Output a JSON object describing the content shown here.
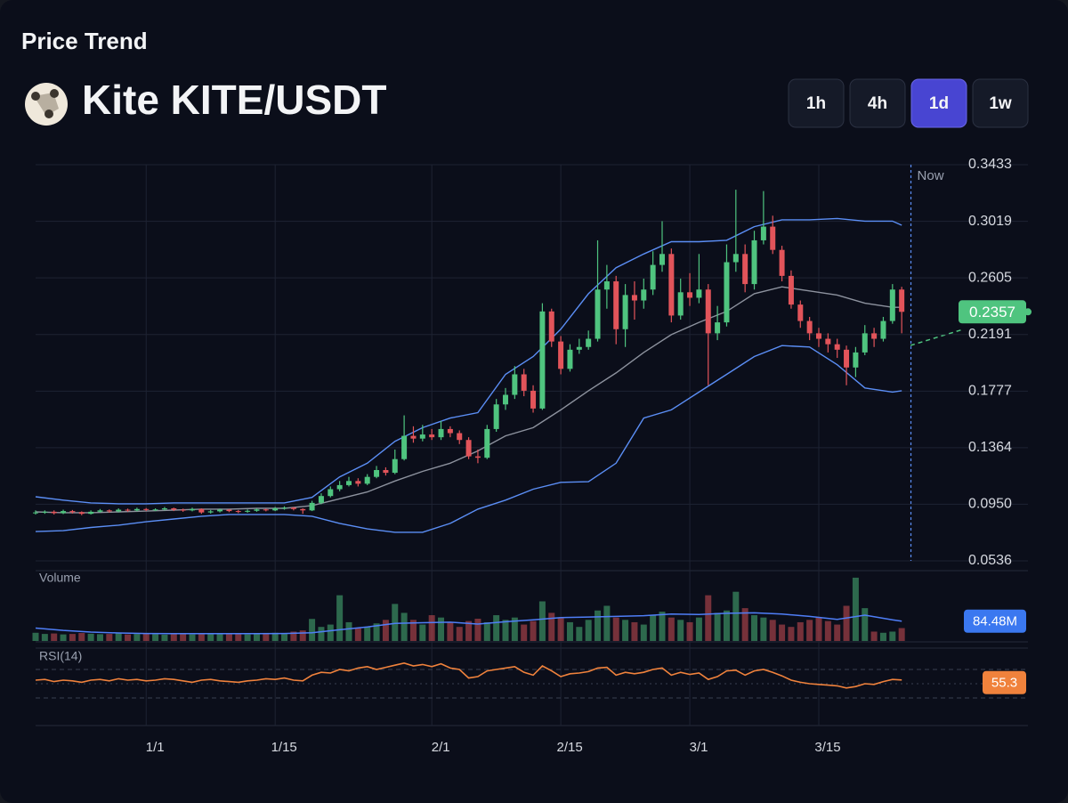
{
  "header": {
    "title": "Price Trend",
    "pair": "Kite KITE/USDT"
  },
  "timeframes": [
    "1h",
    "4h",
    "1d",
    "1w"
  ],
  "active_timeframe": "1d",
  "chart_data": {
    "type": "candlestick",
    "x": [
      -12,
      -11,
      -10,
      -9,
      -8,
      -7,
      -6,
      -5,
      -4,
      -3,
      -2,
      -1,
      0,
      1,
      2,
      3,
      4,
      5,
      6,
      7,
      8,
      9,
      10,
      11,
      12,
      13,
      14,
      15,
      16,
      17,
      18,
      19,
      20,
      21,
      22,
      23,
      24,
      25,
      26,
      27,
      28,
      29,
      30,
      31,
      32,
      33,
      34,
      35,
      36,
      37,
      38,
      39,
      40,
      41,
      42,
      43,
      44,
      45,
      46,
      47,
      48,
      49,
      50,
      51,
      52,
      53,
      54,
      55,
      56,
      57,
      58,
      59,
      60,
      61,
      62,
      63,
      64,
      65,
      66,
      67,
      68,
      69,
      70,
      71,
      72,
      73,
      74,
      75,
      76,
      77,
      78,
      79,
      80,
      81,
      82
    ],
    "open": [
      0.0885,
      0.089,
      0.0895,
      0.0885,
      0.09,
      0.0892,
      0.088,
      0.0895,
      0.0905,
      0.0898,
      0.091,
      0.0905,
      0.0915,
      0.0908,
      0.0912,
      0.092,
      0.091,
      0.0905,
      0.0915,
      0.089,
      0.0898,
      0.091,
      0.09,
      0.0895,
      0.0902,
      0.0912,
      0.0905,
      0.092,
      0.0925,
      0.0915,
      0.0905,
      0.096,
      0.101,
      0.106,
      0.109,
      0.112,
      0.11,
      0.115,
      0.12,
      0.118,
      0.128,
      0.145,
      0.143,
      0.146,
      0.144,
      0.15,
      0.147,
      0.142,
      0.13,
      0.129,
      0.15,
      0.168,
      0.175,
      0.19,
      0.178,
      0.165,
      0.236,
      0.214,
      0.194,
      0.208,
      0.21,
      0.216,
      0.252,
      0.258,
      0.223,
      0.248,
      0.244,
      0.252,
      0.27,
      0.278,
      0.233,
      0.25,
      0.246,
      0.252,
      0.22,
      0.228,
      0.272,
      0.278,
      0.256,
      0.288,
      0.298,
      0.281,
      0.262,
      0.241,
      0.229,
      0.22,
      0.216,
      0.212,
      0.208,
      0.195,
      0.206,
      0.22,
      0.216,
      0.229,
      0.252
    ],
    "high": [
      0.0905,
      0.0905,
      0.0905,
      0.091,
      0.0908,
      0.0898,
      0.0905,
      0.0915,
      0.0912,
      0.092,
      0.0918,
      0.0925,
      0.0922,
      0.092,
      0.093,
      0.0925,
      0.0918,
      0.0925,
      0.092,
      0.0908,
      0.0918,
      0.0915,
      0.0908,
      0.0912,
      0.092,
      0.0918,
      0.093,
      0.0935,
      0.093,
      0.092,
      0.0975,
      0.103,
      0.108,
      0.112,
      0.115,
      0.114,
      0.117,
      0.123,
      0.122,
      0.135,
      0.16,
      0.152,
      0.153,
      0.15,
      0.156,
      0.152,
      0.149,
      0.144,
      0.135,
      0.153,
      0.172,
      0.18,
      0.196,
      0.194,
      0.182,
      0.242,
      0.238,
      0.218,
      0.212,
      0.216,
      0.222,
      0.288,
      0.27,
      0.262,
      0.256,
      0.258,
      0.26,
      0.28,
      0.302,
      0.282,
      0.26,
      0.264,
      0.278,
      0.256,
      0.24,
      0.285,
      0.325,
      0.285,
      0.295,
      0.324,
      0.306,
      0.284,
      0.266,
      0.244,
      0.232,
      0.224,
      0.22,
      0.216,
      0.211,
      0.21,
      0.226,
      0.224,
      0.232,
      0.256,
      0.254
    ],
    "low": [
      0.0875,
      0.088,
      0.0875,
      0.0878,
      0.0882,
      0.087,
      0.0875,
      0.0888,
      0.0888,
      0.089,
      0.0895,
      0.0898,
      0.09,
      0.09,
      0.0905,
      0.09,
      0.0895,
      0.0898,
      0.088,
      0.0882,
      0.089,
      0.0892,
      0.0885,
      0.0888,
      0.0895,
      0.0898,
      0.09,
      0.091,
      0.0905,
      0.088,
      0.09,
      0.095,
      0.1,
      0.1045,
      0.108,
      0.108,
      0.109,
      0.114,
      0.116,
      0.117,
      0.127,
      0.14,
      0.141,
      0.142,
      0.142,
      0.144,
      0.139,
      0.128,
      0.125,
      0.128,
      0.148,
      0.164,
      0.172,
      0.174,
      0.162,
      0.164,
      0.21,
      0.19,
      0.192,
      0.205,
      0.208,
      0.214,
      0.238,
      0.212,
      0.21,
      0.23,
      0.238,
      0.248,
      0.265,
      0.228,
      0.23,
      0.24,
      0.242,
      0.182,
      0.215,
      0.225,
      0.265,
      0.25,
      0.252,
      0.285,
      0.278,
      0.258,
      0.238,
      0.224,
      0.215,
      0.21,
      0.206,
      0.202,
      0.182,
      0.188,
      0.204,
      0.21,
      0.214,
      0.227,
      0.22
    ],
    "close": [
      0.089,
      0.0895,
      0.0885,
      0.09,
      0.0892,
      0.088,
      0.0895,
      0.0905,
      0.0898,
      0.091,
      0.0905,
      0.0915,
      0.0908,
      0.0912,
      0.092,
      0.091,
      0.0905,
      0.0915,
      0.089,
      0.0898,
      0.091,
      0.09,
      0.0895,
      0.0902,
      0.0912,
      0.0905,
      0.092,
      0.0925,
      0.0915,
      0.0905,
      0.096,
      0.101,
      0.106,
      0.109,
      0.112,
      0.11,
      0.115,
      0.12,
      0.118,
      0.128,
      0.145,
      0.143,
      0.146,
      0.144,
      0.15,
      0.147,
      0.142,
      0.13,
      0.129,
      0.15,
      0.168,
      0.175,
      0.19,
      0.178,
      0.165,
      0.236,
      0.214,
      0.194,
      0.208,
      0.21,
      0.216,
      0.252,
      0.258,
      0.223,
      0.248,
      0.244,
      0.252,
      0.27,
      0.278,
      0.233,
      0.25,
      0.246,
      0.252,
      0.22,
      0.228,
      0.272,
      0.278,
      0.256,
      0.288,
      0.298,
      0.281,
      0.262,
      0.241,
      0.229,
      0.22,
      0.216,
      0.212,
      0.208,
      0.195,
      0.206,
      0.22,
      0.216,
      0.229,
      0.252,
      0.2357
    ],
    "up_color": "#4fc47f",
    "down_color": "#e2545a",
    "xlim": [
      -12,
      95.7
    ],
    "xticks": [
      {
        "value": 0,
        "label": "1/1"
      },
      {
        "value": 14,
        "label": "1/15"
      },
      {
        "value": 31,
        "label": "2/1"
      },
      {
        "value": 45,
        "label": "2/15"
      },
      {
        "value": 59,
        "label": "3/1"
      },
      {
        "value": 73,
        "label": "3/15"
      }
    ],
    "ylim": [
      0.0536,
      0.3433
    ],
    "yticks": [
      0.0536,
      {
        "value": 0.095,
        "label": "0.0950"
      },
      0.1364,
      0.1777,
      0.2191,
      0.2605,
      0.3019,
      0.3433
    ],
    "grid": true,
    "now": {
      "x": 83,
      "label": "Now"
    },
    "bands": [
      {
        "color": "#5b8ef5",
        "x": [
          -12,
          -9,
          -6,
          -3,
          0,
          3,
          6,
          9,
          12,
          15,
          18,
          21,
          24,
          27,
          30,
          33,
          36,
          39,
          42,
          45,
          48,
          51,
          54,
          57,
          60,
          63,
          66,
          69,
          72,
          75,
          78,
          81,
          82
        ],
        "values": [
          0.1005,
          0.098,
          0.096,
          0.0953,
          0.0953,
          0.096,
          0.096,
          0.096,
          0.096,
          0.096,
          0.1,
          0.115,
          0.125,
          0.141,
          0.151,
          0.158,
          0.162,
          0.19,
          0.203,
          0.223,
          0.249,
          0.268,
          0.278,
          0.287,
          0.287,
          0.288,
          0.298,
          0.303,
          0.303,
          0.304,
          0.302,
          0.302,
          0.299
        ]
      },
      {
        "color": "#8d929e",
        "x": [
          -12,
          -9,
          -6,
          -3,
          0,
          3,
          6,
          9,
          12,
          15,
          18,
          21,
          24,
          27,
          30,
          33,
          36,
          39,
          42,
          45,
          48,
          51,
          54,
          57,
          60,
          63,
          66,
          69,
          72,
          75,
          78,
          81,
          82
        ],
        "values": [
          0.0894,
          0.0888,
          0.0888,
          0.0894,
          0.09,
          0.0907,
          0.0914,
          0.0914,
          0.092,
          0.092,
          0.094,
          0.099,
          0.104,
          0.112,
          0.119,
          0.125,
          0.134,
          0.145,
          0.151,
          0.164,
          0.178,
          0.191,
          0.206,
          0.219,
          0.228,
          0.236,
          0.249,
          0.254,
          0.251,
          0.248,
          0.242,
          0.239,
          0.239
        ]
      },
      {
        "color": "#5b8ef5",
        "x": [
          -12,
          -9,
          -6,
          -3,
          0,
          3,
          6,
          9,
          12,
          15,
          18,
          21,
          24,
          27,
          30,
          33,
          36,
          39,
          42,
          45,
          48,
          51,
          54,
          57,
          60,
          63,
          66,
          69,
          72,
          75,
          78,
          81,
          82
        ],
        "values": [
          0.075,
          0.0757,
          0.078,
          0.0797,
          0.0822,
          0.0842,
          0.0862,
          0.0875,
          0.0875,
          0.0875,
          0.0862,
          0.081,
          0.077,
          0.0745,
          0.0745,
          0.081,
          0.0914,
          0.098,
          0.106,
          0.111,
          0.1115,
          0.125,
          0.158,
          0.164,
          0.177,
          0.19,
          0.203,
          0.211,
          0.21,
          0.197,
          0.18,
          0.177,
          0.178
        ]
      }
    ],
    "volume": {
      "title": "Volume",
      "ylim": [
        0,
        300
      ],
      "values": [
        35,
        30,
        32,
        28,
        30,
        34,
        31,
        29,
        30,
        33,
        28,
        30,
        31,
        29,
        27,
        30,
        32,
        28,
        30,
        29,
        31,
        33,
        30,
        28,
        30,
        32,
        35,
        30,
        40,
        45,
        94,
        60,
        70,
        195,
        80,
        55,
        60,
        75,
        90,
        158,
        120,
        90,
        70,
        110,
        100,
        80,
        60,
        85,
        95,
        80,
        110,
        90,
        100,
        70,
        85,
        169,
        120,
        100,
        80,
        60,
        90,
        130,
        150,
        100,
        90,
        80,
        70,
        110,
        125,
        100,
        90,
        80,
        100,
        195,
        120,
        130,
        210,
        140,
        110,
        100,
        90,
        70,
        60,
        80,
        90,
        100,
        85,
        70,
        150,
        270,
        140,
        40,
        35,
        40,
        55
      ],
      "ma": {
        "color": "#4f7ef7",
        "x": [
          -12,
          -9,
          -6,
          -3,
          0,
          3,
          6,
          9,
          12,
          15,
          18,
          21,
          24,
          27,
          30,
          33,
          36,
          39,
          42,
          45,
          48,
          51,
          54,
          57,
          60,
          63,
          66,
          69,
          72,
          75,
          78,
          81,
          82
        ],
        "values": [
          55,
          45,
          38,
          34,
          32,
          31,
          31,
          31,
          31,
          32,
          35,
          48,
          60,
          75,
          78,
          80,
          72,
          82,
          90,
          100,
          102,
          105,
          108,
          115,
          113,
          118,
          120,
          115,
          105,
          92,
          110,
          90,
          84.48
        ],
        "value_labels": [
          null,
          null,
          null,
          null,
          null,
          null,
          null,
          null,
          null,
          null,
          null,
          null,
          null,
          null,
          null,
          null,
          null,
          null,
          null,
          null,
          null,
          null,
          null,
          null,
          null,
          null,
          null,
          null,
          null,
          null,
          null,
          null,
          "84.48M"
        ]
      }
    },
    "rsi": {
      "title": "RSI(14)",
      "color": "#f0823c",
      "ylim": [
        0,
        100
      ],
      "levels": [
        70,
        50,
        30
      ],
      "values": [
        55,
        56,
        53,
        55,
        54,
        52,
        55,
        56,
        54,
        57,
        55,
        56,
        54,
        55,
        57,
        56,
        54,
        52,
        55,
        56,
        54,
        53,
        52,
        54,
        55,
        57,
        56,
        58,
        55,
        54,
        62,
        66,
        65,
        70,
        68,
        72,
        74,
        70,
        73,
        76,
        79,
        75,
        77,
        74,
        78,
        72,
        70,
        58,
        60,
        68,
        70,
        72,
        74,
        66,
        62,
        75,
        68,
        60,
        64,
        65,
        67,
        72,
        73,
        62,
        66,
        64,
        66,
        70,
        72,
        62,
        66,
        63,
        65,
        56,
        60,
        68,
        69,
        62,
        68,
        70,
        66,
        61,
        55,
        52,
        50,
        49,
        48,
        47,
        44,
        46,
        50,
        49,
        53,
        56,
        55.3
      ]
    }
  }
}
